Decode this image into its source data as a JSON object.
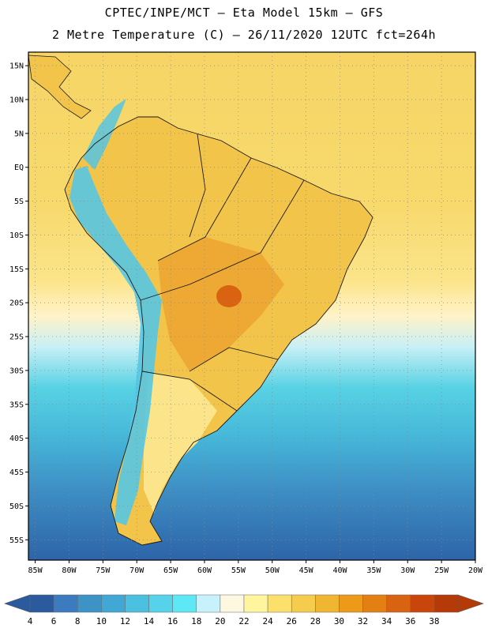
{
  "header": {
    "line1": "CPTEC/INPE/MCT –  Eta Model 15km – GFS",
    "line2": "2 Metre Temperature (C) – 26/11/2020 12UTC fct=264h"
  },
  "map": {
    "lat_labels": [
      "15N",
      "10N",
      "5N",
      "EQ",
      "5S",
      "10S",
      "15S",
      "20S",
      "25S",
      "30S",
      "35S",
      "40S",
      "45S",
      "50S",
      "55S"
    ],
    "lon_labels": [
      "85W",
      "80W",
      "75W",
      "70W",
      "65W",
      "60W",
      "55W",
      "50W",
      "45W",
      "40W",
      "35W",
      "30W",
      "25W",
      "20W"
    ],
    "lat_range": [
      17,
      -58
    ],
    "lon_range": [
      -86,
      -20
    ],
    "grid_step_deg": 5
  },
  "colorbar": {
    "values": [
      "4",
      "6",
      "8",
      "10",
      "12",
      "14",
      "16",
      "18",
      "20",
      "22",
      "24",
      "26",
      "28",
      "30",
      "32",
      "34",
      "36",
      "38"
    ],
    "colors": [
      "#2b5a9e",
      "#3c7bbf",
      "#3d93c6",
      "#41a8d6",
      "#4cc0e0",
      "#56d3ea",
      "#5ee8f6",
      "#c8f2fb",
      "#fff8e0",
      "#fff59e",
      "#fbe06c",
      "#f5cc4e",
      "#f0b631",
      "#ec9a17",
      "#e47f14",
      "#d96310",
      "#c8460c",
      "#b53a08"
    ],
    "low_color": "#2b5a9e",
    "high_color": "#b53a08"
  }
}
